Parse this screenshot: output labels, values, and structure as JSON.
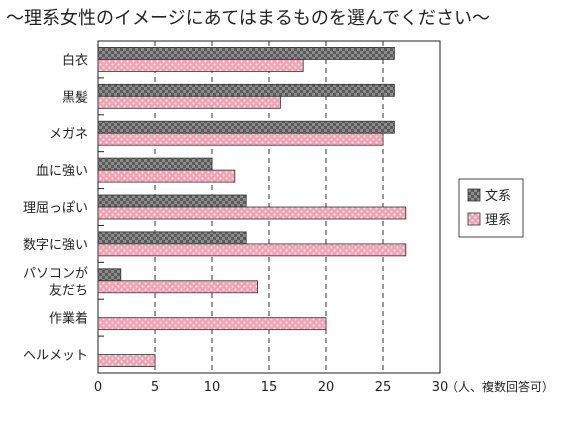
{
  "chart_data": {
    "type": "bar",
    "orientation": "horizontal",
    "title": "～理系女性のイメージにあてはまるものを選んでください～",
    "unit_label": "（人、複数回答可）",
    "categories": [
      [
        "白衣"
      ],
      [
        "黒髪"
      ],
      [
        "メガネ"
      ],
      [
        "血に強い"
      ],
      [
        "理屈っぽい"
      ],
      [
        "数字に強い"
      ],
      [
        "パソコンが",
        "友だち"
      ],
      [
        "作業着"
      ],
      [
        "ヘルメット"
      ]
    ],
    "series": [
      {
        "name": "文系",
        "color": "#8c8c8c",
        "values": [
          26,
          26,
          26,
          10,
          13,
          13,
          2,
          0,
          0
        ]
      },
      {
        "name": "理系",
        "color": "#f2a0b4",
        "values": [
          18,
          16,
          25,
          12,
          27,
          27,
          14,
          20,
          5
        ]
      }
    ],
    "xlim": [
      0,
      30
    ],
    "xticks": [
      0,
      5,
      10,
      15,
      20,
      25,
      30
    ],
    "grid": "vertical dashed",
    "legend": "right"
  }
}
